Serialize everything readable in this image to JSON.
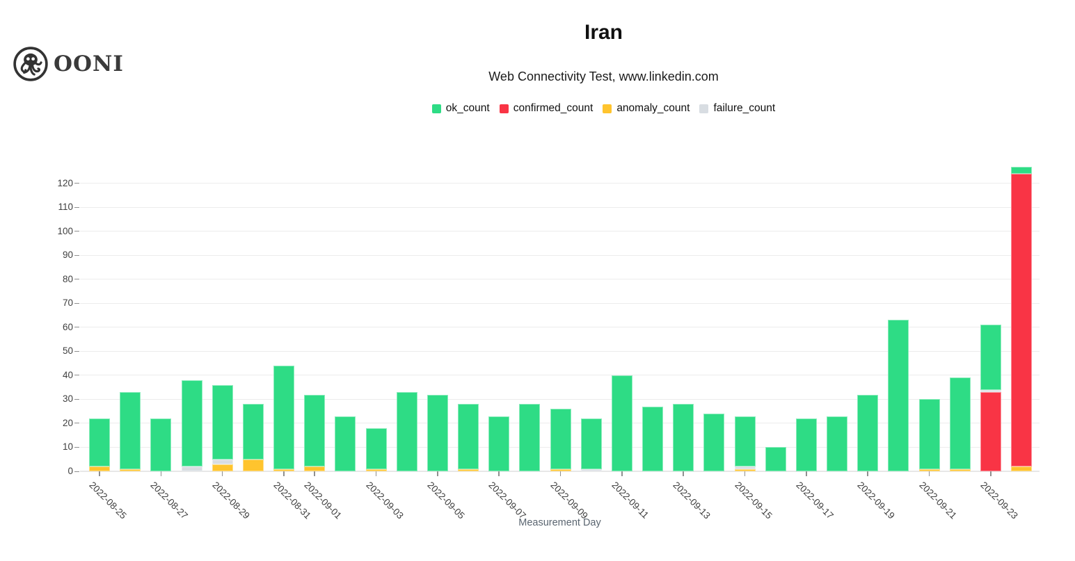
{
  "brand": {
    "logo_text": "OONI"
  },
  "chart_data": {
    "type": "bar",
    "stacked": true,
    "title": "Iran",
    "subtitle": "Web Connectivity Test, www.linkedin.com",
    "xlabel": "Measurement Day",
    "ylabel": "",
    "ylim": [
      0,
      127
    ],
    "yticks": [
      0,
      10,
      20,
      30,
      40,
      50,
      60,
      70,
      80,
      90,
      100,
      110,
      120
    ],
    "grid": "horizontal",
    "legend_position": "top-center",
    "categories": [
      "2022-08-25",
      "2022-08-26",
      "2022-08-27",
      "2022-08-28",
      "2022-08-29",
      "2022-08-30",
      "2022-08-31",
      "2022-09-01",
      "2022-09-02",
      "2022-09-03",
      "2022-09-04",
      "2022-09-05",
      "2022-09-06",
      "2022-09-07",
      "2022-09-08",
      "2022-09-09",
      "2022-09-10",
      "2022-09-11",
      "2022-09-12",
      "2022-09-13",
      "2022-09-14",
      "2022-09-15",
      "2022-09-16",
      "2022-09-17",
      "2022-09-18",
      "2022-09-19",
      "2022-09-20",
      "2022-09-21",
      "2022-09-22",
      "2022-09-23",
      "2022-09-24"
    ],
    "visible_x_tick_indices": [
      0,
      2,
      4,
      6,
      7,
      9,
      11,
      13,
      15,
      17,
      19,
      21,
      23,
      25,
      27,
      29
    ],
    "stack_order_bottom_to_top": [
      "anomaly_count",
      "confirmed_count",
      "failure_count",
      "ok_count"
    ],
    "series": [
      {
        "name": "ok_count",
        "color": "#2edc85",
        "values": [
          20,
          32,
          22,
          36,
          31,
          23,
          43,
          30,
          23,
          17,
          33,
          32,
          27,
          23,
          28,
          25,
          21,
          40,
          27,
          28,
          24,
          21,
          10,
          22,
          23,
          32,
          63,
          29,
          38,
          27,
          3
        ]
      },
      {
        "name": "confirmed_count",
        "color": "#f93445",
        "values": [
          0,
          0,
          0,
          0,
          0,
          0,
          0,
          0,
          0,
          0,
          0,
          0,
          0,
          0,
          0,
          0,
          0,
          0,
          0,
          0,
          0,
          0,
          0,
          0,
          0,
          0,
          0,
          0,
          0,
          33,
          122
        ]
      },
      {
        "name": "anomaly_count",
        "color": "#ffc42e",
        "values": [
          2,
          1,
          0,
          0,
          3,
          5,
          1,
          2,
          0,
          1,
          0,
          0,
          1,
          0,
          0,
          1,
          0,
          0,
          0,
          0,
          0,
          1,
          0,
          0,
          0,
          0,
          0,
          1,
          1,
          0,
          2
        ]
      },
      {
        "name": "failure_count",
        "color": "#d8dde2",
        "values": [
          0,
          0,
          0,
          2,
          2,
          0,
          0,
          0,
          0,
          0,
          0,
          0,
          0,
          0,
          0,
          0,
          1,
          0,
          0,
          0,
          0,
          1,
          0,
          0,
          0,
          0,
          0,
          0,
          0,
          1,
          0
        ]
      }
    ]
  }
}
